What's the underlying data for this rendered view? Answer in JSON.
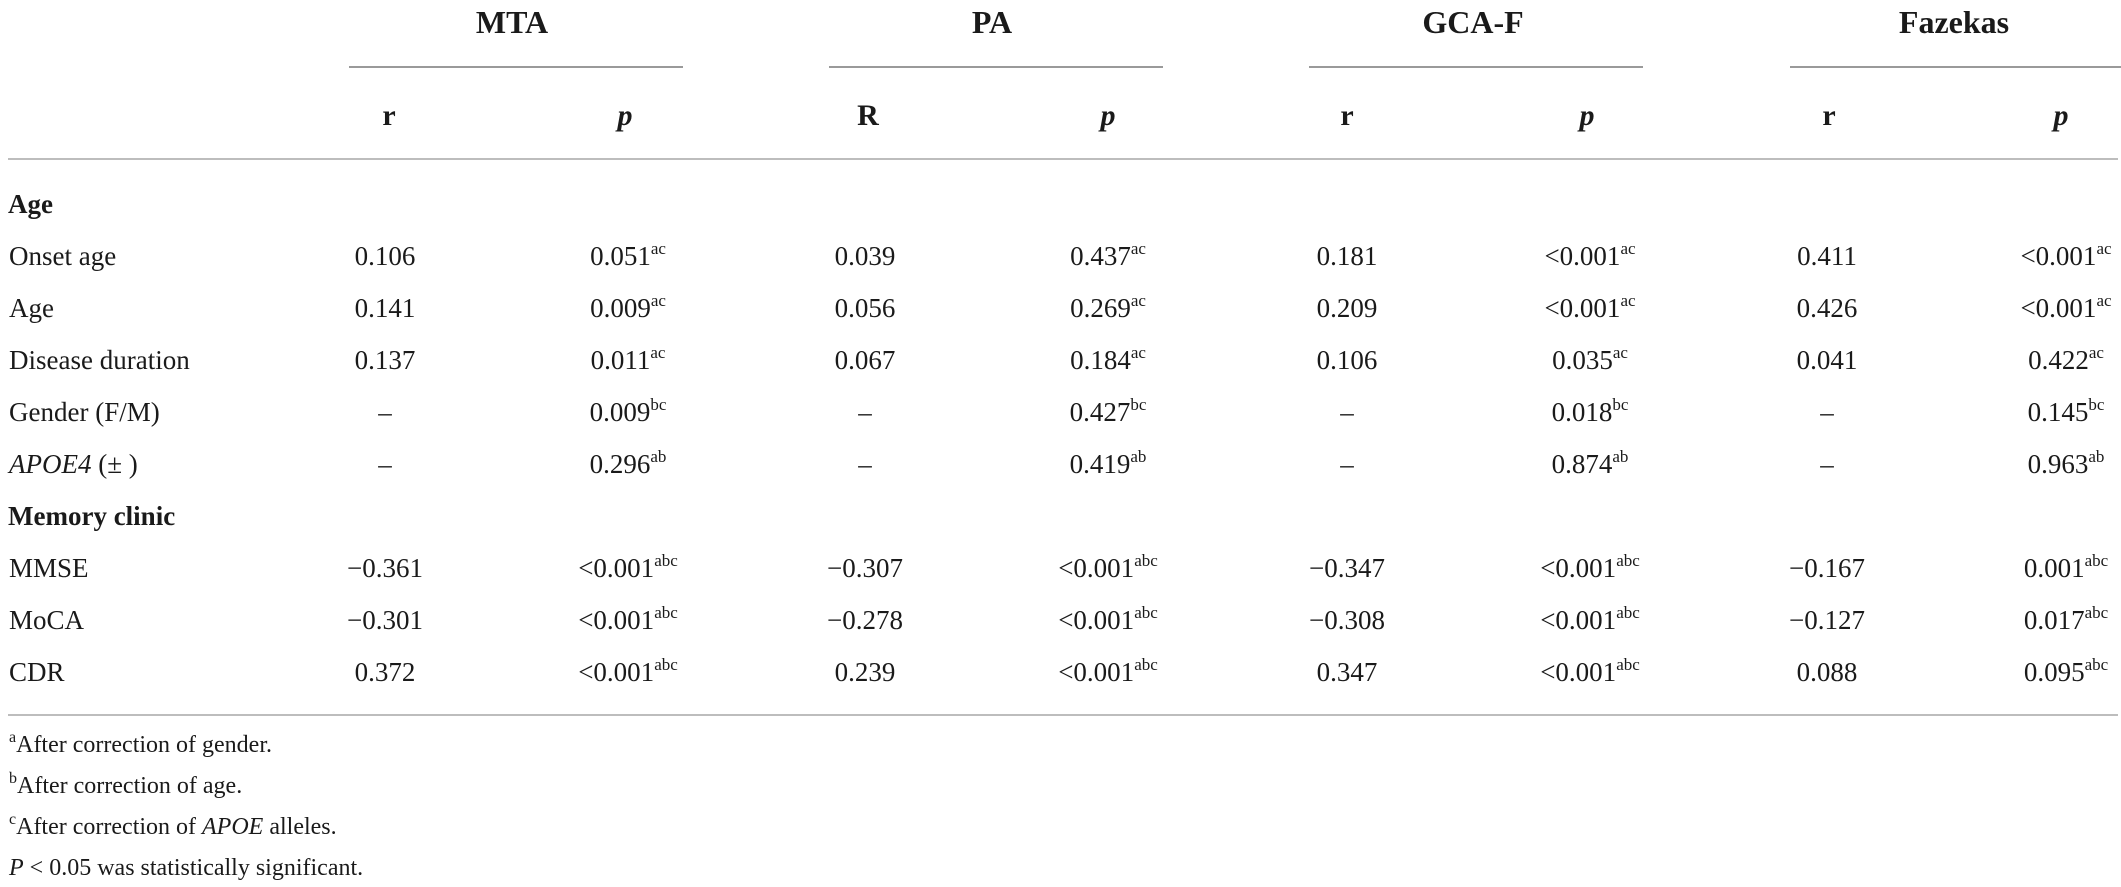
{
  "table": {
    "groups": [
      {
        "name": "MTA",
        "r_label": "r",
        "p_label": "p"
      },
      {
        "name": "PA",
        "r_label": "R",
        "p_label": "p"
      },
      {
        "name": "GCA-F",
        "r_label": "r",
        "p_label": "p"
      },
      {
        "name": "Fazekas",
        "r_label": "r",
        "p_label": "p"
      }
    ],
    "sections": [
      {
        "title": "Age",
        "rows": [
          {
            "label": "Onset age",
            "label_italic": "",
            "label_rest": "",
            "cells": [
              {
                "r": "0.106",
                "p": "0.051",
                "sup": "ac"
              },
              {
                "r": "0.039",
                "p": "0.437",
                "sup": "ac"
              },
              {
                "r": "0.181",
                "p": "<0.001",
                "sup": "ac"
              },
              {
                "r": "0.411",
                "p": "<0.001",
                "sup": "ac"
              }
            ]
          },
          {
            "label": "Age",
            "label_italic": "",
            "label_rest": "",
            "cells": [
              {
                "r": "0.141",
                "p": "0.009",
                "sup": "ac"
              },
              {
                "r": "0.056",
                "p": "0.269",
                "sup": "ac"
              },
              {
                "r": "0.209",
                "p": "<0.001",
                "sup": "ac"
              },
              {
                "r": "0.426",
                "p": "<0.001",
                "sup": "ac"
              }
            ]
          },
          {
            "label": "Disease duration",
            "label_italic": "",
            "label_rest": "",
            "cells": [
              {
                "r": "0.137",
                "p": "0.011",
                "sup": "ac"
              },
              {
                "r": "0.067",
                "p": "0.184",
                "sup": "ac"
              },
              {
                "r": "0.106",
                "p": "0.035",
                "sup": "ac"
              },
              {
                "r": "0.041",
                "p": "0.422",
                "sup": "ac"
              }
            ]
          },
          {
            "label": "Gender (F/M)",
            "label_italic": "",
            "label_rest": "",
            "cells": [
              {
                "r": "–",
                "p": "0.009",
                "sup": "bc"
              },
              {
                "r": "–",
                "p": "0.427",
                "sup": "bc"
              },
              {
                "r": "–",
                "p": "0.018",
                "sup": "bc"
              },
              {
                "r": "–",
                "p": "0.145",
                "sup": "bc"
              }
            ]
          },
          {
            "label": "",
            "label_italic": "APOE4",
            "label_rest": " (± )",
            "cells": [
              {
                "r": "–",
                "p": "0.296",
                "sup": "ab"
              },
              {
                "r": "–",
                "p": "0.419",
                "sup": "ab"
              },
              {
                "r": "–",
                "p": "0.874",
                "sup": "ab"
              },
              {
                "r": "–",
                "p": "0.963",
                "sup": "ab"
              }
            ]
          }
        ]
      },
      {
        "title": "Memory clinic",
        "rows": [
          {
            "label": "MMSE",
            "label_italic": "",
            "label_rest": "",
            "cells": [
              {
                "r": "−0.361",
                "p": "<0.001",
                "sup": "abc"
              },
              {
                "r": "−0.307",
                "p": "<0.001",
                "sup": "abc"
              },
              {
                "r": "−0.347",
                "p": "<0.001",
                "sup": "abc"
              },
              {
                "r": "−0.167",
                "p": "0.001",
                "sup": "abc"
              }
            ]
          },
          {
            "label": "MoCA",
            "label_italic": "",
            "label_rest": "",
            "cells": [
              {
                "r": "−0.301",
                "p": "<0.001",
                "sup": "abc"
              },
              {
                "r": "−0.278",
                "p": "<0.001",
                "sup": "abc"
              },
              {
                "r": "−0.308",
                "p": "<0.001",
                "sup": "abc"
              },
              {
                "r": "−0.127",
                "p": "0.017",
                "sup": "abc"
              }
            ]
          },
          {
            "label": "CDR",
            "label_italic": "",
            "label_rest": "",
            "cells": [
              {
                "r": "0.372",
                "p": "<0.001",
                "sup": "abc"
              },
              {
                "r": "0.239",
                "p": "<0.001",
                "sup": "abc"
              },
              {
                "r": "0.347",
                "p": "<0.001",
                "sup": "abc"
              },
              {
                "r": "0.088",
                "p": "0.095",
                "sup": "abc"
              }
            ]
          }
        ]
      }
    ]
  },
  "footnotes": {
    "a": {
      "mark": "a",
      "text": "After correction of gender."
    },
    "b": {
      "mark": "b",
      "text": "After correction of age."
    },
    "c": {
      "mark": "c",
      "text_before": "After correction of ",
      "text_italic": "APOE",
      "text_after": " alleles."
    },
    "d": {
      "italic": "P",
      "text": " < 0.05 was statistically significant."
    }
  }
}
